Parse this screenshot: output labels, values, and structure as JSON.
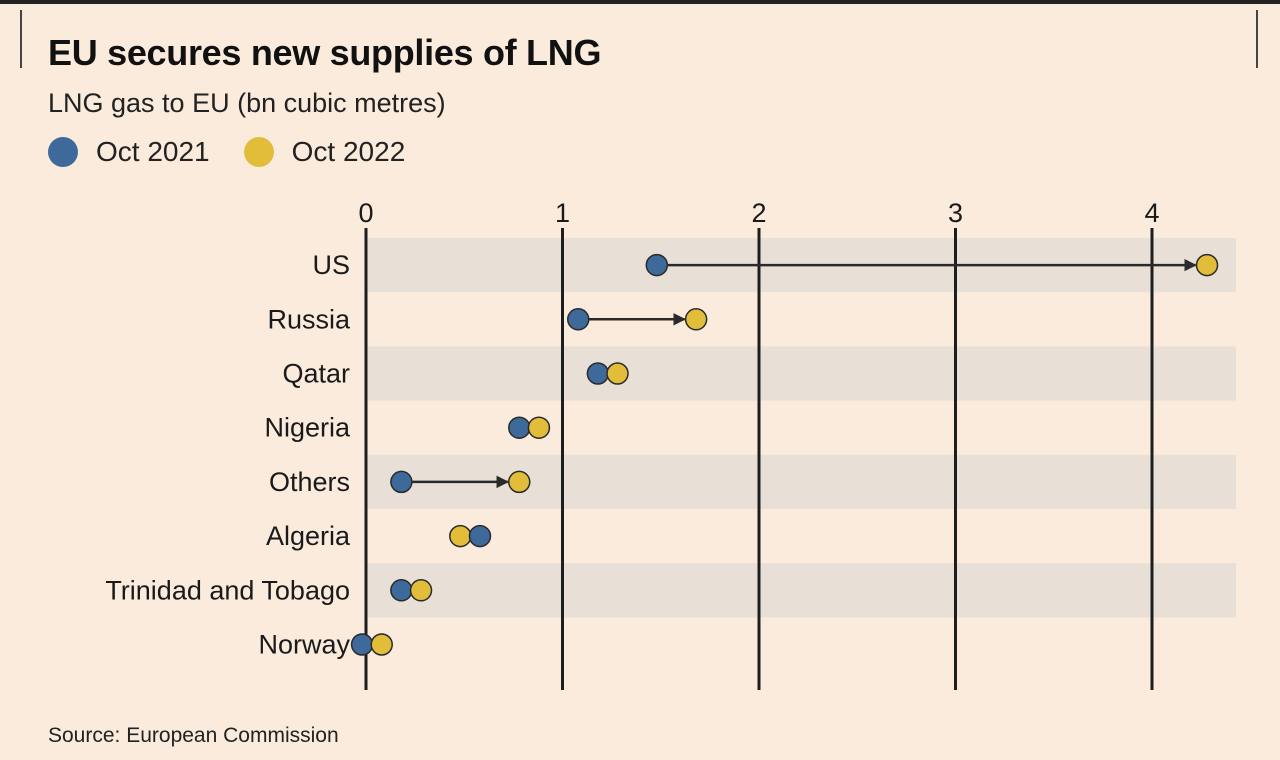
{
  "chart_data": {
    "type": "dot",
    "title": "EU secures new supplies of LNG",
    "subtitle": "LNG gas to EU (bn cubic metres)",
    "source": "Source: European Commission",
    "xlim": [
      0,
      4.3
    ],
    "ticks": [
      {
        "value": 0,
        "label": "0"
      },
      {
        "value": 1,
        "label": "1"
      },
      {
        "value": 2,
        "label": "2"
      },
      {
        "value": 3,
        "label": "3"
      },
      {
        "value": 4,
        "label": "4"
      }
    ],
    "categories": [
      "US",
      "Russia",
      "Qatar",
      "Nigeria",
      "Others",
      "Algeria",
      "Trinidad and Tobago",
      "Norway"
    ],
    "series": [
      {
        "name": "Oct 2021",
        "color": "#3d6a9a",
        "values": [
          1.48,
          1.08,
          1.18,
          0.78,
          0.18,
          0.58,
          0.18,
          -0.02
        ]
      },
      {
        "name": "Oct 2022",
        "color": "#e2bd3a",
        "values": [
          4.28,
          1.68,
          1.28,
          0.88,
          0.78,
          0.48,
          0.28,
          0.08
        ]
      }
    ],
    "arrows": [
      "US",
      "Russia",
      "Others"
    ]
  },
  "legend": {
    "s1_label": "Oct 2021",
    "s2_label": "Oct 2022",
    "s1_color": "#3d6a9a",
    "s2_color": "#e2bd3a"
  },
  "colors": {
    "background": "#faebdd",
    "band": "#e8e0d6",
    "axis": "#1e1e1e",
    "arrow": "#2a2a2a",
    "dot_outline": "#2a2a2a"
  }
}
